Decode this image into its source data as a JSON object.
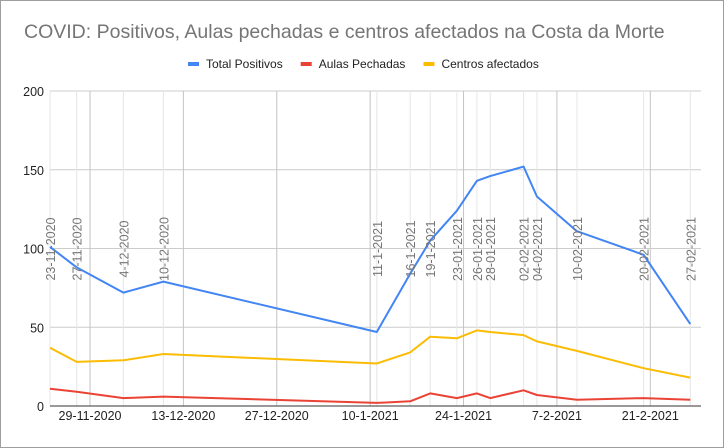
{
  "chart_data": {
    "type": "line",
    "title": "COVID: Positivos, Aulas pechadas e centros afectados na Costa da Morte",
    "xlabel": "",
    "ylabel": "",
    "ylim": [
      0,
      200
    ],
    "yticks": [
      0,
      50,
      100,
      150,
      200
    ],
    "xticks": [
      "29-11-2020",
      "13-12-2020",
      "27-12-2020",
      "10-1-2021",
      "24-1-2021",
      "7-2-2021",
      "21-2-2021"
    ],
    "xtick_dates": [
      "2020-11-29",
      "2020-12-13",
      "2020-12-27",
      "2021-01-10",
      "2021-01-24",
      "2021-02-07",
      "2021-02-21"
    ],
    "grid": true,
    "legend": "top",
    "x_labels": [
      "23-11-2020",
      "27-11-2020",
      "4-12-2020",
      "10-12-2020",
      "11-1-2021",
      "16-1-2021",
      "19-1-2021",
      "23-01-2021",
      "26-01-2021",
      "28-01-2021",
      "02-02-2021",
      "04-02-2021",
      "10-02-2021",
      "20-02-2021",
      "27-02-2021"
    ],
    "x": [
      "2020-11-23",
      "2020-11-27",
      "2020-12-04",
      "2020-12-10",
      "2021-01-11",
      "2021-01-16",
      "2021-01-19",
      "2021-01-23",
      "2021-01-26",
      "2021-01-28",
      "2021-02-02",
      "2021-02-04",
      "2021-02-10",
      "2021-02-20",
      "2021-02-27"
    ],
    "series": [
      {
        "name": "Total Positivos",
        "color": "#4285f4",
        "values": [
          101,
          88,
          72,
          79,
          47,
          84,
          105,
          124,
          143,
          146,
          152,
          133,
          111,
          96,
          52
        ]
      },
      {
        "name": "Aulas Pechadas",
        "color": "#ea4335",
        "values": [
          11,
          9,
          5,
          6,
          2,
          3,
          8,
          5,
          8,
          5,
          10,
          7,
          4,
          5,
          4
        ]
      },
      {
        "name": "Centros afectados",
        "color": "#fbbc04",
        "values": [
          37,
          28,
          29,
          33,
          27,
          34,
          44,
          43,
          48,
          47,
          45,
          41,
          35,
          24,
          18
        ]
      }
    ]
  }
}
